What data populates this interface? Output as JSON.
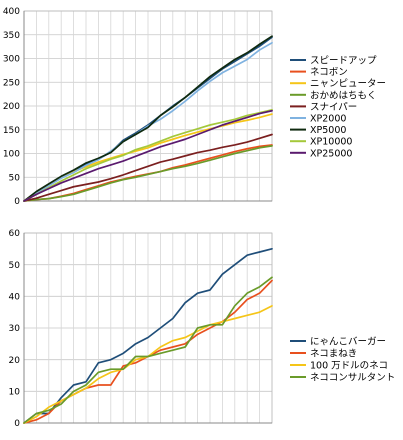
{
  "chart_data": [
    {
      "type": "line",
      "ylim": [
        0,
        400
      ],
      "yticks": [
        0,
        50,
        100,
        150,
        200,
        250,
        300,
        350,
        400
      ],
      "xlim": [
        0,
        20
      ],
      "grid": true,
      "legend": "right",
      "x": [
        0,
        1,
        2,
        3,
        4,
        5,
        6,
        7,
        8,
        9,
        10,
        11,
        12,
        13,
        14,
        15,
        16,
        17,
        18,
        19,
        20
      ],
      "series": [
        {
          "name": "スピードアップ",
          "color": "#1F4E79",
          "values": [
            0,
            18,
            33,
            50,
            62,
            78,
            88,
            103,
            128,
            143,
            160,
            180,
            200,
            218,
            238,
            258,
            278,
            294,
            310,
            326,
            345
          ]
        },
        {
          "name": "ネコボン",
          "color": "#E8501E",
          "values": [
            0,
            3,
            5,
            10,
            16,
            24,
            32,
            40,
            46,
            52,
            57,
            62,
            70,
            76,
            83,
            90,
            97,
            104,
            110,
            115,
            118
          ]
        },
        {
          "name": "ニャンピューター",
          "color": "#F5C518",
          "values": [
            0,
            18,
            35,
            50,
            62,
            72,
            82,
            90,
            98,
            105,
            112,
            122,
            130,
            138,
            145,
            152,
            158,
            165,
            170,
            176,
            183
          ]
        },
        {
          "name": "おかめはちもく",
          "color": "#6A9B2A",
          "values": [
            0,
            3,
            5,
            9,
            14,
            22,
            30,
            38,
            45,
            50,
            56,
            62,
            68,
            73,
            79,
            86,
            93,
            100,
            106,
            112,
            116
          ]
        },
        {
          "name": "スナイパー",
          "color": "#7B1F1F",
          "values": [
            0,
            6,
            14,
            22,
            30,
            35,
            40,
            47,
            55,
            64,
            73,
            82,
            88,
            95,
            102,
            107,
            113,
            118,
            124,
            132,
            140
          ]
        },
        {
          "name": "XP2000",
          "color": "#7FB2E0",
          "values": [
            0,
            16,
            32,
            48,
            60,
            75,
            87,
            105,
            125,
            140,
            158,
            172,
            190,
            210,
            232,
            252,
            270,
            284,
            298,
            318,
            333
          ]
        },
        {
          "name": "XP5000",
          "color": "#0F2A0F",
          "values": [
            0,
            20,
            36,
            52,
            65,
            80,
            90,
            102,
            125,
            140,
            155,
            180,
            198,
            218,
            240,
            262,
            280,
            298,
            312,
            330,
            347
          ]
        },
        {
          "name": "XP10000",
          "color": "#A4C83A",
          "values": [
            0,
            14,
            28,
            42,
            55,
            68,
            78,
            88,
            96,
            108,
            116,
            126,
            136,
            144,
            152,
            160,
            166,
            172,
            180,
            186,
            192
          ]
        },
        {
          "name": "XP25000",
          "color": "#5A1A6E",
          "values": [
            0,
            14,
            26,
            38,
            48,
            58,
            68,
            76,
            84,
            94,
            104,
            114,
            122,
            130,
            140,
            150,
            160,
            168,
            176,
            184,
            190
          ]
        }
      ]
    },
    {
      "type": "line",
      "ylim": [
        0,
        60
      ],
      "yticks": [
        0,
        10,
        20,
        30,
        40,
        50,
        60
      ],
      "xlim": [
        0,
        20
      ],
      "grid": true,
      "legend": "right",
      "x": [
        0,
        1,
        2,
        3,
        4,
        5,
        6,
        7,
        8,
        9,
        10,
        11,
        12,
        13,
        14,
        15,
        16,
        17,
        18,
        19,
        20
      ],
      "series": [
        {
          "name": "にゃんこバーガー",
          "color": "#1F4E79",
          "values": [
            0,
            3,
            3,
            8,
            12,
            13,
            19,
            20,
            22,
            25,
            27,
            30,
            33,
            38,
            41,
            42,
            47,
            50,
            53,
            54,
            55
          ]
        },
        {
          "name": "ネコまねき",
          "color": "#E8501E",
          "values": [
            0,
            1,
            3,
            7,
            9,
            11,
            12,
            12,
            18,
            19,
            21,
            23,
            24,
            25,
            28,
            30,
            32,
            35,
            39,
            41,
            45
          ]
        },
        {
          "name": "100 万ドルのネコ",
          "color": "#F5C518",
          "values": [
            0,
            2,
            5,
            7,
            9,
            11,
            14,
            16,
            17,
            20,
            21,
            24,
            26,
            27,
            29,
            31,
            32,
            33,
            34,
            35,
            37
          ]
        },
        {
          "name": "ネココンサルタント",
          "color": "#6A9B2A",
          "values": [
            0,
            3,
            4,
            6,
            10,
            12,
            16,
            17,
            17,
            21,
            21,
            22,
            23,
            24,
            30,
            31,
            31,
            37,
            41,
            43,
            46
          ]
        }
      ]
    }
  ]
}
